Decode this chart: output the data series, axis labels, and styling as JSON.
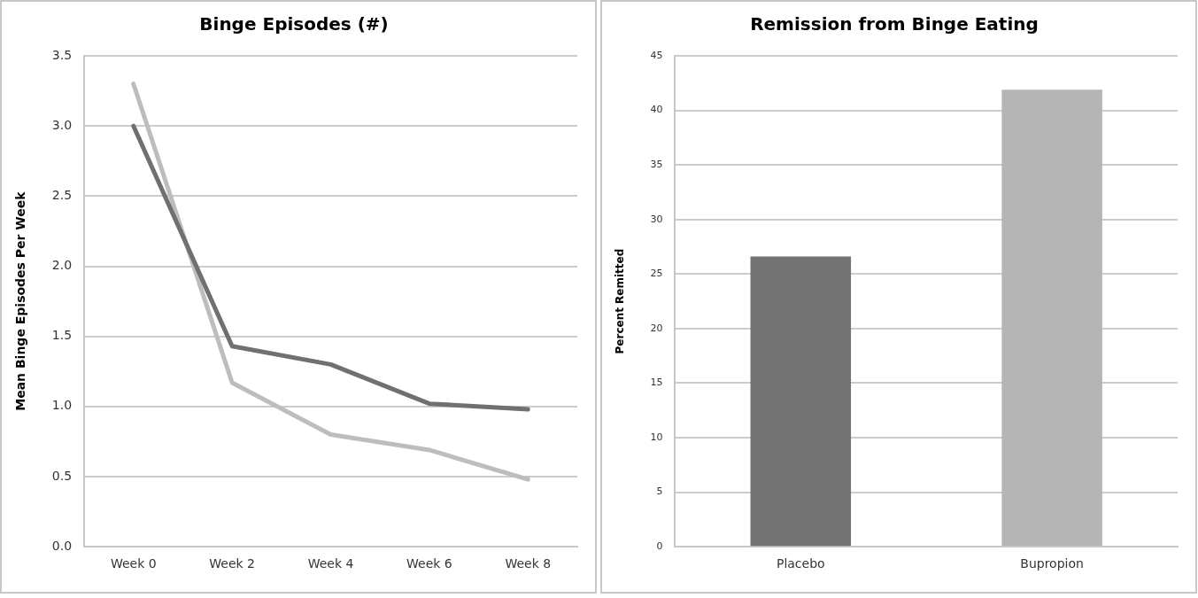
{
  "chart_data": [
    {
      "type": "line",
      "title": "Binge Episodes (#)",
      "ylabel": "Mean Binge Episodes Per Week",
      "categories": [
        "Week 0",
        "Week 2",
        "Week 4",
        "Week 6",
        "Week 8"
      ],
      "series": [
        {
          "color": "#707070",
          "values": [
            3.0,
            1.43,
            1.3,
            1.02,
            0.98
          ]
        },
        {
          "color": "#bdbdbd",
          "values": [
            3.3,
            1.17,
            0.8,
            0.69,
            0.48
          ]
        }
      ],
      "ylim": [
        0,
        3.5
      ],
      "yticks": [
        {
          "value": 0,
          "label": "0.0"
        },
        0.5,
        {
          "value": 1,
          "label": "1.0"
        },
        1.5,
        {
          "value": 2,
          "label": "2.0"
        },
        2.5,
        {
          "value": 3,
          "label": "3.0"
        },
        3.5
      ],
      "grid": "y",
      "legend": false,
      "marker": "none",
      "line_style": "solid"
    },
    {
      "type": "bar",
      "title": "Remission from Binge Eating",
      "ylabel": "Percent Remitted",
      "categories": [
        "Placebo",
        "Bupropion"
      ],
      "values": [
        26.6,
        41.9
      ],
      "colors": [
        "#727272",
        "#b5b5b5"
      ],
      "ylim": [
        0,
        45
      ],
      "yticks": [
        0,
        5,
        10,
        15,
        20,
        25,
        30,
        35,
        40,
        45
      ],
      "grid": "y",
      "legend": false
    }
  ]
}
